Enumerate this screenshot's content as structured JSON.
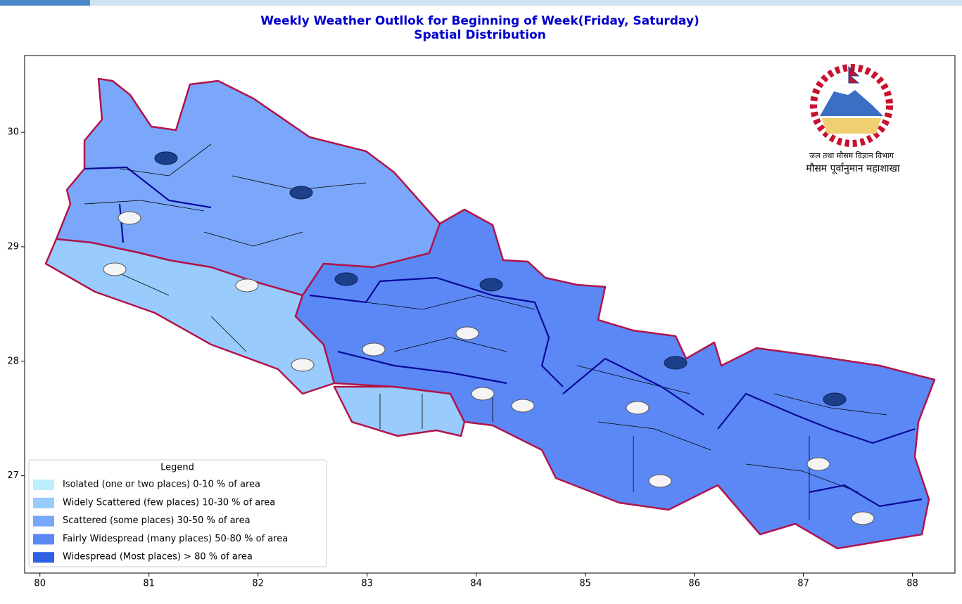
{
  "header": {
    "title_line1": "Weekly Weather Outllok for Beginning of Week(Friday, Saturday)",
    "title_line2": "Spatial Distribution"
  },
  "map": {
    "xlim": [
      79.86,
      88.39
    ],
    "ylim": [
      26.15,
      30.67
    ],
    "xticks": [
      80,
      81,
      82,
      83,
      84,
      85,
      86,
      87,
      88
    ],
    "yticks": [
      27,
      28,
      29,
      30
    ]
  },
  "legend": {
    "title": "Legend",
    "items": [
      {
        "label": "Isolated (one or two places)  0-10 % of area",
        "color": "#bdeefb"
      },
      {
        "label": "Widely Scattered (few places)  10-30 % of area",
        "color": "#99cbfd"
      },
      {
        "label": "Scattered (some places)  30-50 % of area",
        "color": "#7aa7f9"
      },
      {
        "label": "Fairly Widespread (many places)  50-80 % of area",
        "color": "#5b88f5"
      },
      {
        "label": "Widespread (Most places) > 80 % of area",
        "color": "#2f5fe2"
      }
    ]
  },
  "logo": {
    "line1": "जल तथा मौसम विज्ञान विभाग",
    "line2": "मौसम पूर्वानुमान महाशाखा"
  }
}
